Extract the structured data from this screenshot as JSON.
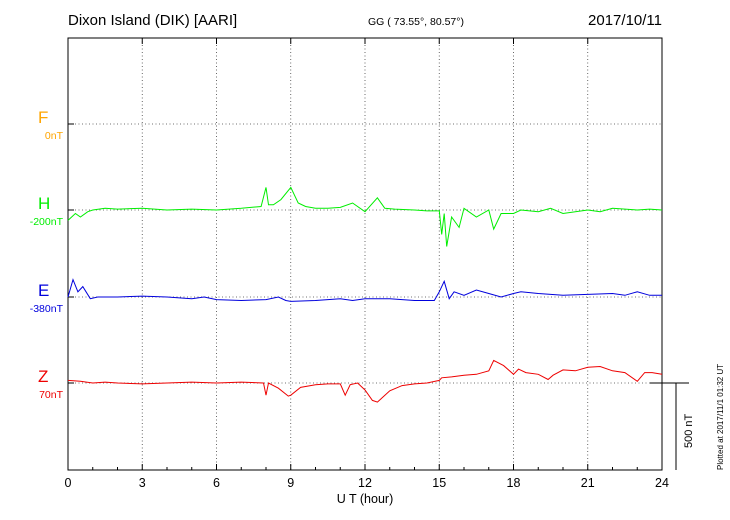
{
  "header": {
    "title": "Dixon Island (DIK)  [AARI]",
    "coords": "GG ( 73.55°,  80.57°)",
    "date": "2017/10/11"
  },
  "footer": {
    "plotted": "Plotted at 2017/11/1 01:32 UT"
  },
  "chart_data": {
    "type": "line",
    "xlabel": "U T (hour)",
    "xlim": [
      0,
      24
    ],
    "xticks": [
      0,
      3,
      6,
      9,
      12,
      15,
      18,
      21,
      24
    ],
    "scale_bar": {
      "label": "500 nT",
      "value_nT": 500
    },
    "grid": true,
    "series": [
      {
        "name": "F",
        "offset": "0nT",
        "color": "#ffa500",
        "values": []
      },
      {
        "name": "H",
        "offset": "-200nT",
        "color": "#00ee00",
        "x": [
          0,
          0.3,
          0.5,
          0.8,
          1,
          1.5,
          2,
          3,
          4,
          5,
          6,
          7,
          7.8,
          8,
          8.1,
          8.3,
          8.6,
          9,
          9.3,
          9.6,
          10,
          10.5,
          11,
          11.5,
          12,
          12.5,
          12.8,
          13.2,
          14,
          14.5,
          15,
          15.1,
          15.2,
          15.3,
          15.5,
          15.8,
          16,
          16.5,
          17,
          17.2,
          17.5,
          18,
          18.3,
          19,
          19.5,
          20,
          21,
          21.5,
          22,
          23,
          23.5,
          24
        ],
        "values": [
          -60,
          -20,
          -40,
          -10,
          0,
          10,
          5,
          10,
          0,
          5,
          0,
          10,
          20,
          130,
          30,
          30,
          60,
          130,
          40,
          20,
          10,
          10,
          15,
          40,
          -10,
          70,
          10,
          5,
          0,
          -5,
          -5,
          -140,
          -20,
          -210,
          -40,
          -100,
          10,
          -40,
          0,
          -110,
          -20,
          -20,
          0,
          -10,
          10,
          -20,
          0,
          -10,
          10,
          0,
          5,
          0
        ]
      },
      {
        "name": "E",
        "offset": "-380nT",
        "color": "#0000dd",
        "x": [
          0,
          0.2,
          0.4,
          0.6,
          0.9,
          1.2,
          2,
          3,
          4,
          5,
          5.5,
          6,
          7,
          8,
          8.5,
          8.8,
          9,
          10,
          11,
          11.5,
          12,
          13,
          14,
          14.8,
          15,
          15.2,
          15.4,
          15.6,
          16,
          16.5,
          17,
          17.5,
          18,
          18.3,
          19,
          20,
          21,
          22,
          22.5,
          23,
          23.5,
          24
        ],
        "values": [
          0,
          100,
          30,
          60,
          -10,
          0,
          0,
          5,
          0,
          -10,
          0,
          -15,
          -20,
          -15,
          0,
          -20,
          -25,
          -20,
          -10,
          -20,
          -10,
          -10,
          -20,
          -20,
          30,
          90,
          -10,
          30,
          10,
          40,
          20,
          0,
          20,
          30,
          20,
          10,
          15,
          20,
          10,
          30,
          10,
          10
        ]
      },
      {
        "name": "Z",
        "offset": "70nT",
        "color": "#ee0000",
        "x": [
          0,
          0.5,
          1,
          1.5,
          2,
          3,
          4,
          5,
          6,
          7,
          7.9,
          8,
          8.1,
          8.5,
          8.9,
          9,
          9.4,
          10,
          10.5,
          11,
          11.2,
          11.4,
          11.7,
          12,
          12.3,
          12.5,
          13,
          13.5,
          14,
          14.5,
          15,
          15.1,
          15.5,
          16,
          16.5,
          17,
          17.2,
          17.6,
          18,
          18.2,
          18.5,
          19,
          19.4,
          19.6,
          20,
          20.5,
          21,
          21.5,
          22,
          22.5,
          23,
          23.3,
          23.6,
          24
        ],
        "values": [
          15,
          10,
          0,
          5,
          0,
          -5,
          0,
          5,
          0,
          5,
          0,
          -70,
          0,
          -30,
          -75,
          -70,
          -25,
          -10,
          -5,
          -5,
          -70,
          -10,
          0,
          -40,
          -100,
          -110,
          -45,
          -15,
          -5,
          0,
          15,
          30,
          35,
          45,
          50,
          70,
          130,
          100,
          50,
          80,
          60,
          50,
          20,
          45,
          75,
          70,
          90,
          95,
          70,
          60,
          10,
          60,
          60,
          50
        ]
      }
    ]
  }
}
